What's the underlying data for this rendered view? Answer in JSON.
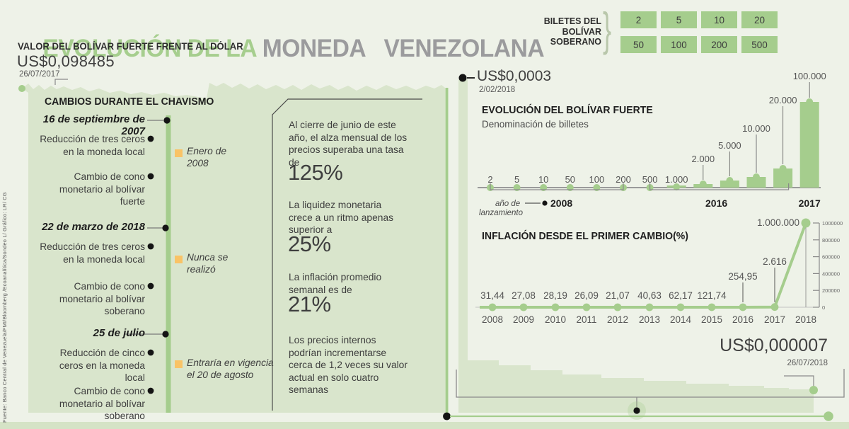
{
  "header": {
    "title_green": "EVOLUCIÓN DE LA ",
    "title_gray": "MONEDA   VENEZOLANA",
    "subtitle": "VALOR DEL BOLÍVAR FUERTE FRENTE AL DÓLAR",
    "value": "US$0,098485",
    "date": "26/07/2017"
  },
  "banknotes": {
    "label_line1": "BILETES DEL",
    "label_line2": "BOLÍVAR",
    "label_line3": "SOBERANO",
    "brace": "}",
    "values": [
      "2",
      "5",
      "10",
      "20",
      "50",
      "100",
      "200",
      "500"
    ]
  },
  "timeline": {
    "title": "CAMBIOS DURANTE EL CHAVISMO",
    "events": [
      {
        "date": "16 de septiembre de 2007",
        "items": [
          "Reducción de tres ceros en la moneda local",
          "Cambio de cono monetario al bolívar fuerte"
        ],
        "note": "Enero de 2008"
      },
      {
        "date": "22 de marzo de 2018",
        "items": [
          "Reducción de tres ceros en la moneda local",
          "Cambio de cono monetario al bolívar soberano"
        ],
        "note": "Nunca se realizó"
      },
      {
        "date": "25 de julio",
        "items": [
          "Reducción de cinco ceros en la moneda local",
          "Cambio de cono monetario al bolívar soberano"
        ],
        "note": "Entraría en vigencia el 20 de agosto"
      }
    ]
  },
  "stats": [
    {
      "text": "Al cierre de junio de este año, el alza mensual de los precios superaba una tasa de",
      "value": "125%"
    },
    {
      "text": "La liquidez monetaria crece a un ritmo apenas superior a",
      "value": "25%"
    },
    {
      "text": "La inflación promedio semanal es de",
      "value": "21%"
    },
    {
      "text": "Los precios internos podrían incrementarse cerca de 1,2 veces su valor actual en solo cuatro semanas",
      "value": ""
    }
  ],
  "callouts": {
    "top": {
      "value": "US$0,0003",
      "date": "2/02/2018"
    },
    "bottom": {
      "value": "US$0,000007",
      "date": "26/07/2018"
    }
  },
  "source": "Fuente: Banco Central de Venezuela/FMI/Bloomberg /Ecoanalítica/Sondeo L/ Gráfico: LR/ CG",
  "chart_data": [
    {
      "type": "bar",
      "title": "EVOLUCIÓN DEL BOLÍVAR FUERTE",
      "subtitle": "Denominación de billetes",
      "categories": [
        "2",
        "5",
        "10",
        "50",
        "100",
        "200",
        "500",
        "1.000",
        "2.000",
        "5.000",
        "10.000",
        "20.000",
        "100.000"
      ],
      "values": [
        2,
        5,
        10,
        50,
        100,
        200,
        500,
        1000,
        2000,
        5000,
        10000,
        20000,
        100000
      ],
      "xlabel": "año de lanzamiento",
      "groups": [
        {
          "label": "2008",
          "from_index": 0,
          "to_index": 5
        },
        {
          "label": "2016",
          "from_index": 6,
          "to_index": 11
        },
        {
          "label": "2017",
          "from_index": 12,
          "to_index": 12
        }
      ]
    },
    {
      "type": "line",
      "title": "INFLACIÓN DESDE EL PRIMER CAMBIO(%)",
      "categories": [
        "2008",
        "2009",
        "2010",
        "2011",
        "2012",
        "2013",
        "2014",
        "2015",
        "2016",
        "2017",
        "2018"
      ],
      "values": [
        31.44,
        27.08,
        28.19,
        26.09,
        21.07,
        40.63,
        62.17,
        121.74,
        254.95,
        2616,
        1000000
      ],
      "labels": [
        "31,44",
        "27,08",
        "28,19",
        "26,09",
        "21,07",
        "40,63",
        "62,17",
        "121,74",
        "254,95",
        "2.616",
        "1.000.000"
      ],
      "y_axis_ticks": [
        "1000000",
        "800000",
        "600000",
        "400000",
        "200000",
        "0"
      ],
      "ylim": [
        0,
        1000000
      ],
      "legend_position": "none",
      "grid": false
    }
  ]
}
